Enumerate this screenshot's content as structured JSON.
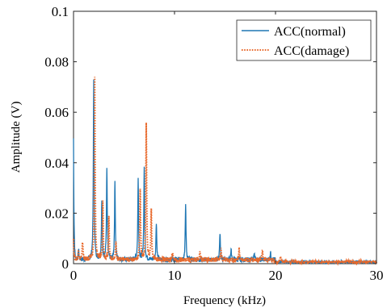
{
  "chart_data": {
    "type": "line",
    "title": "",
    "xlabel": "Frequency (kHz)",
    "ylabel": "Amplitude (V)",
    "xlim": [
      0,
      30
    ],
    "ylim": [
      0,
      0.1
    ],
    "xticks": [
      0,
      10,
      20,
      30
    ],
    "yticks": [
      0,
      0.02,
      0.04,
      0.06,
      0.08,
      0.1
    ],
    "xtick_labels": [
      "0",
      "10",
      "20",
      "30"
    ],
    "ytick_labels": [
      "0",
      "0.02",
      "0.04",
      "0.06",
      "0.08",
      "0.1"
    ],
    "grid": false,
    "legend_position": "top-right",
    "baseline": 0.0012,
    "series": [
      {
        "name": "ACC(normal)",
        "color": "#1f77b4",
        "style": "solid",
        "start_value": 0.048,
        "peaks": [
          {
            "x": 0.5,
            "y": 0.004
          },
          {
            "x": 2.0,
            "y": 0.072
          },
          {
            "x": 2.8,
            "y": 0.023
          },
          {
            "x": 3.3,
            "y": 0.036
          },
          {
            "x": 4.1,
            "y": 0.031
          },
          {
            "x": 6.4,
            "y": 0.032
          },
          {
            "x": 7.0,
            "y": 0.037
          },
          {
            "x": 8.2,
            "y": 0.015
          },
          {
            "x": 11.1,
            "y": 0.022
          },
          {
            "x": 14.5,
            "y": 0.011
          },
          {
            "x": 15.6,
            "y": 0.004
          },
          {
            "x": 17.9,
            "y": 0.003
          },
          {
            "x": 19.5,
            "y": 0.003
          }
        ]
      },
      {
        "name": "ACC(damage)",
        "color": "#e8692c",
        "style": "dotted",
        "start_value": 0.009,
        "peaks": [
          {
            "x": 0.5,
            "y": 0.004
          },
          {
            "x": 0.9,
            "y": 0.007
          },
          {
            "x": 2.1,
            "y": 0.072
          },
          {
            "x": 2.9,
            "y": 0.024
          },
          {
            "x": 3.5,
            "y": 0.017
          },
          {
            "x": 4.2,
            "y": 0.007
          },
          {
            "x": 6.6,
            "y": 0.028
          },
          {
            "x": 7.2,
            "y": 0.054
          },
          {
            "x": 7.7,
            "y": 0.019
          },
          {
            "x": 9.8,
            "y": 0.003
          },
          {
            "x": 12.5,
            "y": 0.003
          },
          {
            "x": 14.6,
            "y": 0.004
          },
          {
            "x": 16.4,
            "y": 0.004
          },
          {
            "x": 18.7,
            "y": 0.003
          },
          {
            "x": 20.5,
            "y": 0.002
          }
        ]
      }
    ]
  }
}
